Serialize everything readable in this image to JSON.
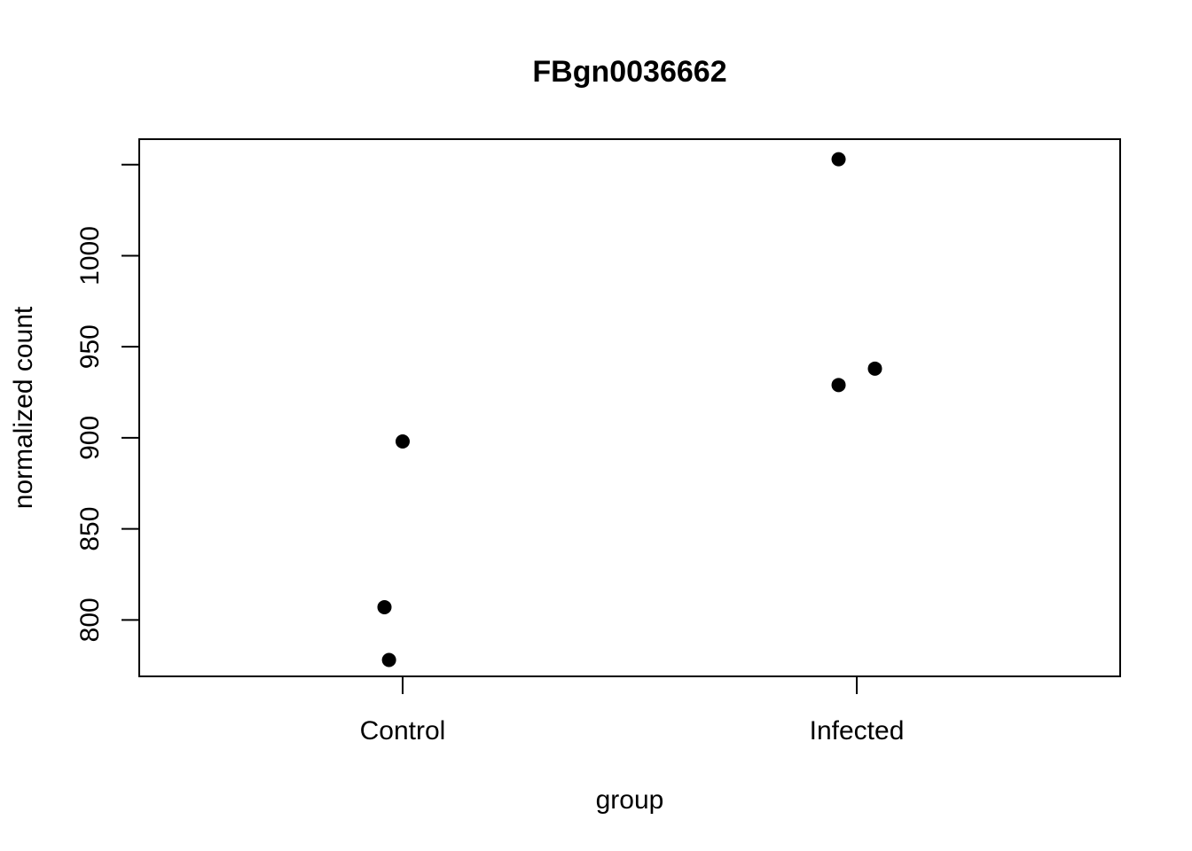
{
  "chart_data": {
    "type": "scatter",
    "title": "FBgn0036662",
    "xlabel": "group",
    "ylabel": "normalized count",
    "categories": [
      "Control",
      "Infected"
    ],
    "points": [
      {
        "group": "Control",
        "jitter": 0.0,
        "y": 898
      },
      {
        "group": "Control",
        "jitter": -0.04,
        "y": 807
      },
      {
        "group": "Control",
        "jitter": -0.03,
        "y": 778
      },
      {
        "group": "Infected",
        "jitter": -0.04,
        "y": 1053
      },
      {
        "group": "Infected",
        "jitter": -0.04,
        "y": 929
      },
      {
        "group": "Infected",
        "jitter": 0.04,
        "y": 938
      }
    ],
    "yticks": [
      800,
      850,
      900,
      950,
      1000
    ],
    "ylim": [
      769,
      1064
    ],
    "xlim": [
      0.42,
      2.58
    ],
    "grid": false,
    "marker_color": "#000000"
  }
}
